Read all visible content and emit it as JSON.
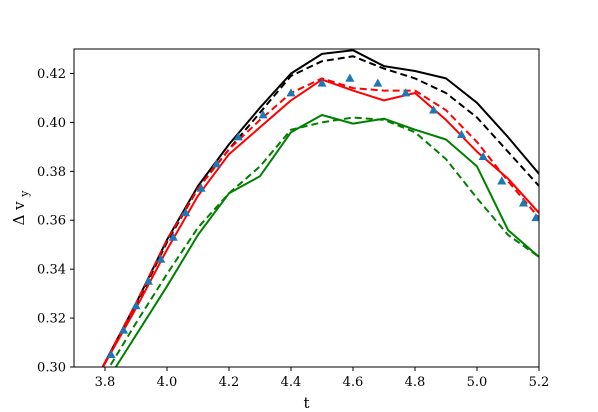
{
  "chart_data": {
    "type": "line",
    "xlabel": "t",
    "ylabel": "Δ v",
    "ylabel_subscript": "y",
    "xlim": [
      3.7,
      5.2
    ],
    "ylim": [
      0.3,
      0.43
    ],
    "x_ticks": [
      3.8,
      4.0,
      4.2,
      4.4,
      4.6,
      4.8,
      5.0,
      5.2
    ],
    "x_tick_labels": [
      "3.8",
      "4.0",
      "4.2",
      "4.4",
      "4.6",
      "4.8",
      "5.0",
      "5.2"
    ],
    "y_ticks": [
      0.3,
      0.32,
      0.34,
      0.36,
      0.38,
      0.4,
      0.42
    ],
    "y_tick_labels": [
      "0.30",
      "0.32",
      "0.34",
      "0.36",
      "0.38",
      "0.40",
      "0.42"
    ],
    "grid": false,
    "legend": "none",
    "series": [
      {
        "color": "#000000",
        "style": "solid",
        "kind": "line",
        "x": [
          3.78,
          3.9,
          4.0,
          4.1,
          4.2,
          4.3,
          4.4,
          4.5,
          4.6,
          4.7,
          4.8,
          4.9,
          5.0,
          5.1,
          5.2
        ],
        "y": [
          0.297,
          0.326,
          0.352,
          0.374,
          0.391,
          0.406,
          0.42,
          0.428,
          0.4295,
          0.423,
          0.421,
          0.418,
          0.408,
          0.394,
          0.379
        ]
      },
      {
        "color": "#000000",
        "style": "dashed",
        "kind": "line",
        "x": [
          3.78,
          3.9,
          4.0,
          4.1,
          4.2,
          4.3,
          4.4,
          4.5,
          4.6,
          4.7,
          4.8,
          4.9,
          5.0,
          5.1,
          5.2
        ],
        "y": [
          0.297,
          0.325,
          0.351,
          0.373,
          0.389,
          0.404,
          0.419,
          0.425,
          0.427,
          0.422,
          0.418,
          0.412,
          0.402,
          0.388,
          0.374
        ]
      },
      {
        "color": "#ff0000",
        "style": "solid",
        "kind": "line",
        "x": [
          3.78,
          3.9,
          4.0,
          4.1,
          4.2,
          4.3,
          4.4,
          4.5,
          4.6,
          4.7,
          4.8,
          4.9,
          5.0,
          5.1,
          5.2
        ],
        "y": [
          0.297,
          0.324,
          0.348,
          0.37,
          0.387,
          0.398,
          0.409,
          0.4175,
          0.413,
          0.409,
          0.412,
          0.401,
          0.388,
          0.377,
          0.363
        ]
      },
      {
        "color": "#ff0000",
        "style": "dashed",
        "kind": "line",
        "x": [
          3.78,
          3.9,
          4.0,
          4.1,
          4.2,
          4.3,
          4.4,
          4.5,
          4.6,
          4.7,
          4.8,
          4.9,
          5.0,
          5.1,
          5.2
        ],
        "y": [
          0.297,
          0.326,
          0.352,
          0.373,
          0.389,
          0.401,
          0.412,
          0.418,
          0.414,
          0.413,
          0.413,
          0.405,
          0.392,
          0.376,
          0.361
        ]
      },
      {
        "color": "#008000",
        "style": "solid",
        "kind": "line",
        "x": [
          3.82,
          3.9,
          4.0,
          4.1,
          4.2,
          4.3,
          4.4,
          4.5,
          4.6,
          4.7,
          4.8,
          4.9,
          5.0,
          5.1,
          5.2
        ],
        "y": [
          0.297,
          0.313,
          0.333,
          0.354,
          0.371,
          0.378,
          0.396,
          0.403,
          0.3995,
          0.4015,
          0.397,
          0.393,
          0.382,
          0.356,
          0.345
        ]
      },
      {
        "color": "#008000",
        "style": "dashed",
        "kind": "line",
        "x": [
          3.8,
          3.9,
          4.0,
          4.1,
          4.2,
          4.3,
          4.4,
          4.5,
          4.6,
          4.7,
          4.8,
          4.9,
          5.0,
          5.1,
          5.2
        ],
        "y": [
          0.297,
          0.318,
          0.338,
          0.357,
          0.371,
          0.382,
          0.397,
          0.4,
          0.402,
          0.401,
          0.396,
          0.385,
          0.369,
          0.354,
          0.345
        ]
      },
      {
        "color": "#1f77b4",
        "style": "none",
        "kind": "markers",
        "marker": "triangle",
        "x": [
          3.82,
          3.86,
          3.9,
          3.94,
          3.98,
          4.02,
          4.06,
          4.11,
          4.16,
          4.23,
          4.31,
          4.4,
          4.5,
          4.59,
          4.68,
          4.77,
          4.86,
          4.95,
          5.02,
          5.08,
          5.15,
          5.19
        ],
        "y": [
          0.305,
          0.315,
          0.325,
          0.335,
          0.344,
          0.353,
          0.363,
          0.373,
          0.383,
          0.394,
          0.403,
          0.412,
          0.416,
          0.418,
          0.416,
          0.412,
          0.405,
          0.395,
          0.386,
          0.376,
          0.367,
          0.361
        ]
      }
    ]
  }
}
